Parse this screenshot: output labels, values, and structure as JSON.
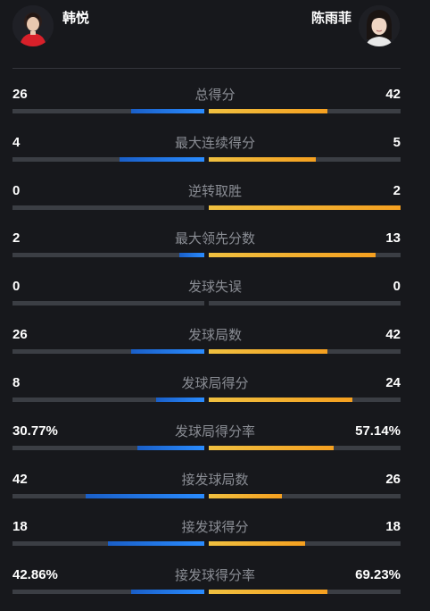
{
  "players": {
    "left": {
      "name": "韩悦"
    },
    "right": {
      "name": "陈雨菲"
    }
  },
  "colors": {
    "left_bar": "#2a8cff",
    "right_bar": "#f5a623",
    "track": "#3b3e44"
  },
  "stats": [
    {
      "label": "总得分",
      "left": "26",
      "right": "42",
      "left_frac": 0.38,
      "right_frac": 0.62
    },
    {
      "label": "最大连续得分",
      "left": "4",
      "right": "5",
      "left_frac": 0.44,
      "right_frac": 0.56
    },
    {
      "label": "逆转取胜",
      "left": "0",
      "right": "2",
      "left_frac": 0.0,
      "right_frac": 1.0
    },
    {
      "label": "最大领先分数",
      "left": "2",
      "right": "13",
      "left_frac": 0.13,
      "right_frac": 0.87
    },
    {
      "label": "发球失误",
      "left": "0",
      "right": "0",
      "left_frac": 0.0,
      "right_frac": 0.0
    },
    {
      "label": "发球局数",
      "left": "26",
      "right": "42",
      "left_frac": 0.38,
      "right_frac": 0.62
    },
    {
      "label": "发球局得分",
      "left": "8",
      "right": "24",
      "left_frac": 0.25,
      "right_frac": 0.75
    },
    {
      "label": "发球局得分率",
      "left": "30.77%",
      "right": "57.14%",
      "left_frac": 0.35,
      "right_frac": 0.65
    },
    {
      "label": "接发球局数",
      "left": "42",
      "right": "26",
      "left_frac": 0.62,
      "right_frac": 0.38
    },
    {
      "label": "接发球得分",
      "left": "18",
      "right": "18",
      "left_frac": 0.5,
      "right_frac": 0.5
    },
    {
      "label": "接发球得分率",
      "left": "42.86%",
      "right": "69.23%",
      "left_frac": 0.38,
      "right_frac": 0.62
    }
  ]
}
